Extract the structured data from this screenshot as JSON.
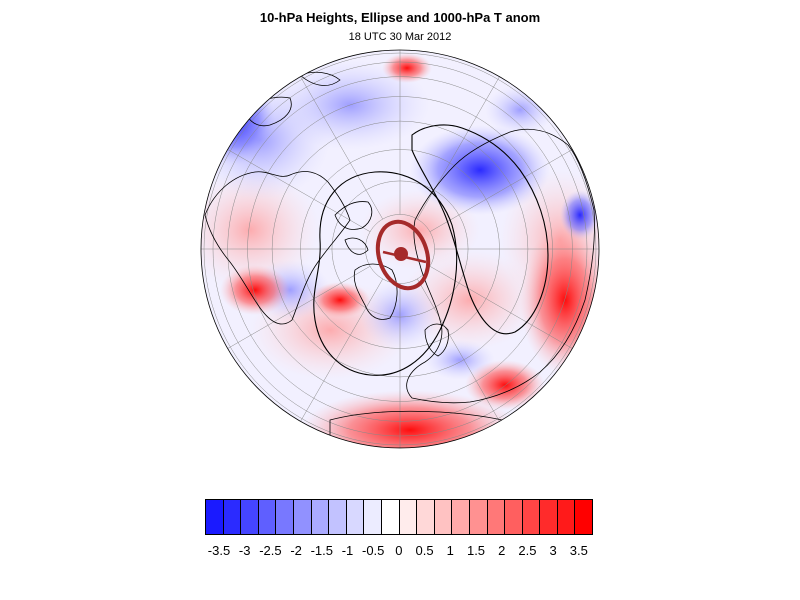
{
  "title": "10-hPa Heights, Ellipse and 1000-hPa T anom",
  "subtitle": "18 UTC 30 Mar 2012",
  "map": {
    "projection": "orthographic-north-polar",
    "colors": {
      "ocean_bg": "#f2f0ff",
      "coast": "#000000",
      "grid": "#888888",
      "height_contour": "#000000",
      "ellipse": "#a52a2a"
    }
  },
  "colorbar": {
    "colors": [
      "#1a1aff",
      "#2b2bff",
      "#4545ff",
      "#5f5fff",
      "#7878ff",
      "#9191ff",
      "#aaaaff",
      "#c2c2ff",
      "#d8d8ff",
      "#ececff",
      "#ffffff",
      "#ffecec",
      "#ffd8d8",
      "#ffc2c2",
      "#ffaaaa",
      "#ff9191",
      "#ff7878",
      "#ff5f5f",
      "#ff4545",
      "#ff2b2b",
      "#ff1a1a",
      "#ff0000"
    ],
    "labels": [
      "-3.5",
      "-3",
      "-2.5",
      "-2",
      "-1.5",
      "-1",
      "-0.5",
      "0",
      "0.5",
      "1",
      "1.5",
      "2",
      "2.5",
      "3",
      "3.5"
    ]
  }
}
